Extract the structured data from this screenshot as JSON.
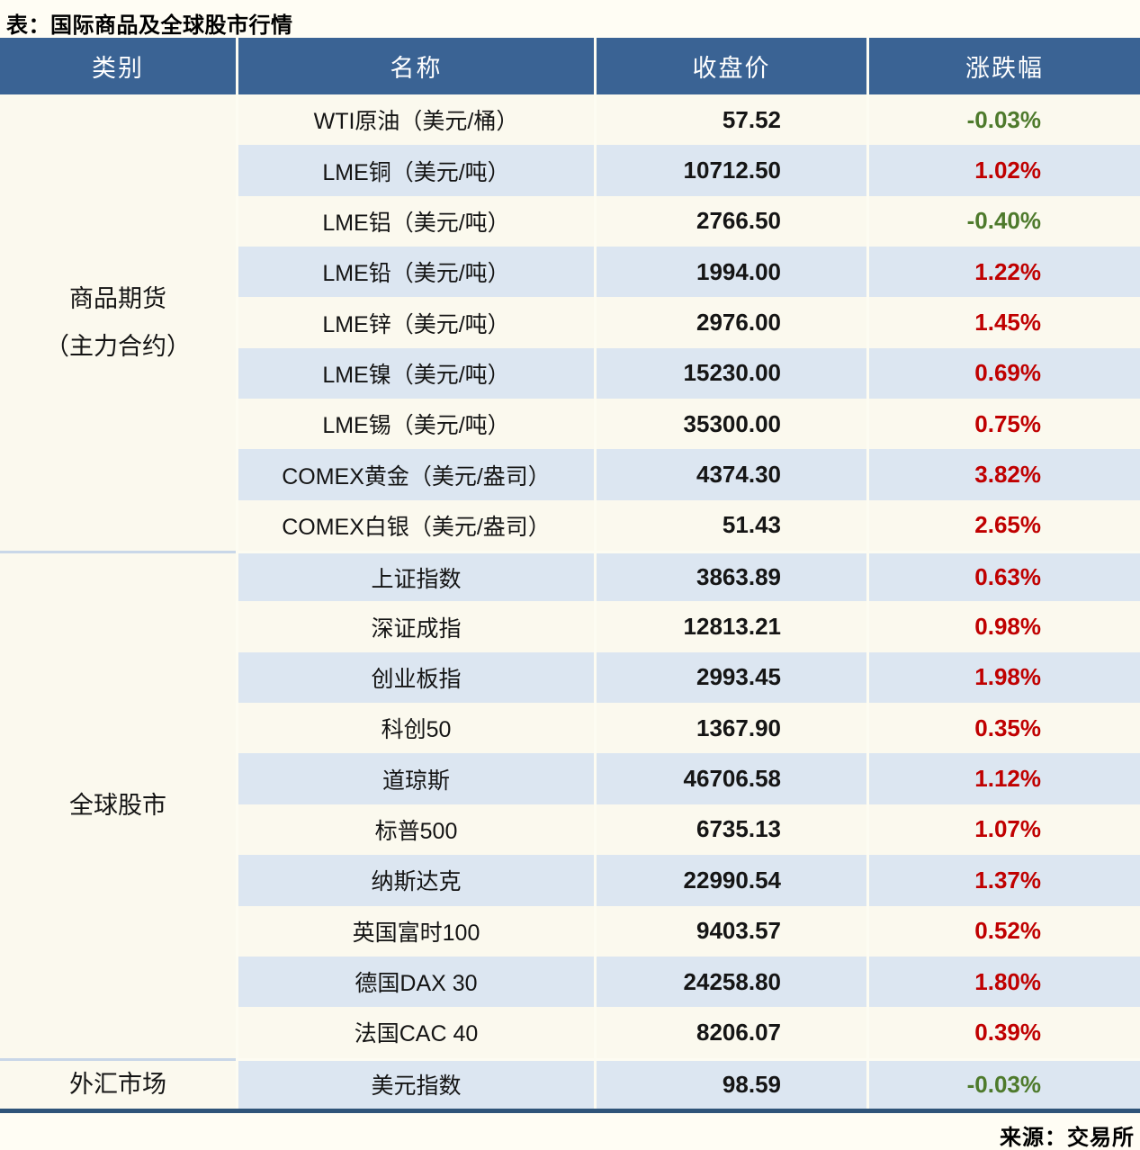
{
  "chart_data": {
    "type": "table",
    "title": "表：国际商品及全球股市行情",
    "columns": [
      "类别",
      "名称",
      "收盘价",
      "涨跌幅"
    ],
    "groups": [
      {
        "label_lines": [
          "商品期货",
          "（主力合约）"
        ],
        "row_count": 9
      },
      {
        "label_lines": [
          "全球股市"
        ],
        "row_count": 10
      },
      {
        "label_lines": [
          "外汇市场"
        ],
        "row_count": 1
      }
    ],
    "rows": [
      {
        "name": "WTI原油（美元/桶）",
        "close": "57.52",
        "change": "-0.03%",
        "trend": "down"
      },
      {
        "name": "LME铜（美元/吨）",
        "close": "10712.50",
        "change": "1.02%",
        "trend": "up"
      },
      {
        "name": "LME铝（美元/吨）",
        "close": "2766.50",
        "change": "-0.40%",
        "trend": "down"
      },
      {
        "name": "LME铅（美元/吨）",
        "close": "1994.00",
        "change": "1.22%",
        "trend": "up"
      },
      {
        "name": "LME锌（美元/吨）",
        "close": "2976.00",
        "change": "1.45%",
        "trend": "up"
      },
      {
        "name": "LME镍（美元/吨）",
        "close": "15230.00",
        "change": "0.69%",
        "trend": "up"
      },
      {
        "name": "LME锡（美元/吨）",
        "close": "35300.00",
        "change": "0.75%",
        "trend": "up"
      },
      {
        "name": "COMEX黄金（美元/盎司）",
        "close": "4374.30",
        "change": "3.82%",
        "trend": "up"
      },
      {
        "name": "COMEX白银（美元/盎司）",
        "close": "51.43",
        "change": "2.65%",
        "trend": "up"
      },
      {
        "name": "上证指数",
        "close": "3863.89",
        "change": "0.63%",
        "trend": "up"
      },
      {
        "name": "深证成指",
        "close": "12813.21",
        "change": "0.98%",
        "trend": "up"
      },
      {
        "name": "创业板指",
        "close": "2993.45",
        "change": "1.98%",
        "trend": "up"
      },
      {
        "name": "科创50",
        "close": "1367.90",
        "change": "0.35%",
        "trend": "up"
      },
      {
        "name": "道琼斯",
        "close": "46706.58",
        "change": "1.12%",
        "trend": "up"
      },
      {
        "name": "标普500",
        "close": "6735.13",
        "change": "1.07%",
        "trend": "up"
      },
      {
        "name": "纳斯达克",
        "close": "22990.54",
        "change": "1.37%",
        "trend": "up"
      },
      {
        "name": "英国富时100",
        "close": "9403.57",
        "change": "0.52%",
        "trend": "up"
      },
      {
        "name": "德国DAX 30",
        "close": "24258.80",
        "change": "1.80%",
        "trend": "up"
      },
      {
        "name": "法国CAC 40",
        "close": "8206.07",
        "change": "0.39%",
        "trend": "up"
      },
      {
        "name": "美元指数",
        "close": "98.59",
        "change": "-0.03%",
        "trend": "down"
      }
    ],
    "source": "来源：交易所"
  },
  "colors": {
    "canvas": "#fffdf4",
    "header_bg": "#3a6394",
    "header_text": "#ffffff",
    "row_base": "#fbf9ee",
    "row_alt": "#dce6f1",
    "up": "#c00000",
    "down": "#4e7a2c",
    "border_bottom": "#2f5479",
    "group_divider": "#c9d7e8",
    "col_divider": "#fdfcf2"
  }
}
